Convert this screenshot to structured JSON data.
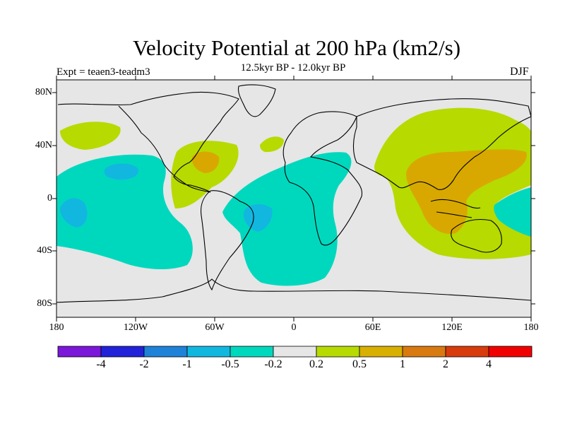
{
  "title": "Velocity Potential at 200 hPa (km2/s)",
  "subtitle": "12.5kyr BP - 12.0kyr BP",
  "experiment": "Expt = teaen3-teadm3",
  "season": "DJF",
  "lat_ticks": [
    "80N",
    "40N",
    "0",
    "40S",
    "80S"
  ],
  "lon_ticks": [
    "180",
    "120W",
    "60W",
    "0",
    "60E",
    "120E",
    "180"
  ],
  "colorbar": {
    "labels": [
      "-4",
      "-2",
      "-1",
      "-0.5",
      "-0.2",
      "0.2",
      "0.5",
      "1",
      "2",
      "4"
    ],
    "colors": [
      "#7a17d8",
      "#2222d8",
      "#1d82d8",
      "#12b7e0",
      "#00d8be",
      "#e6e6e6",
      "#b7da00",
      "#d8b000",
      "#d87a10",
      "#d83c0c",
      "#f00000"
    ]
  },
  "field_colors": {
    "background": "#e6e6e6",
    "pos_02_05": "#b7da00",
    "pos_05_1": "#d8a800",
    "neg_02_05": "#00d8be",
    "neg_05_1": "#12b7e0",
    "coast": "#000000"
  }
}
